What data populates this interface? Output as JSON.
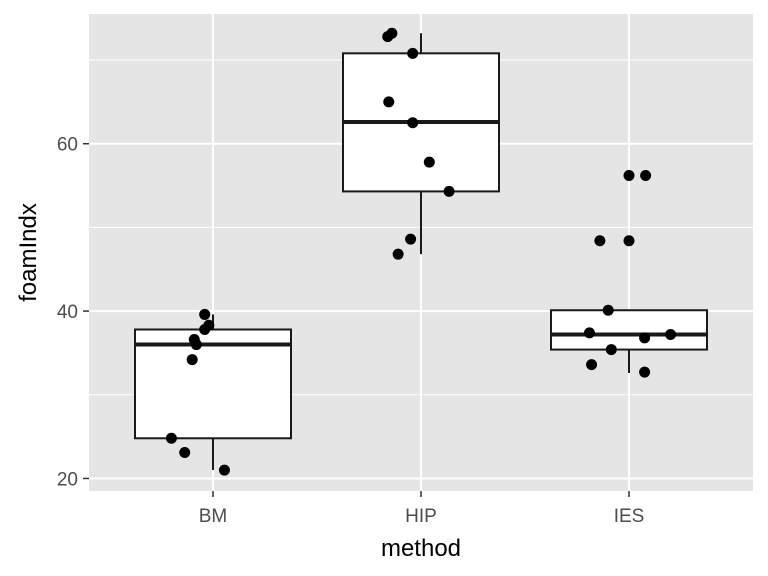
{
  "chart_data": {
    "type": "box",
    "title": "",
    "xlabel": "method",
    "ylabel": "foamIndx",
    "categories": [
      "BM",
      "HIP",
      "IES"
    ],
    "ylim": [
      18.5,
      75.5
    ],
    "yticks": [
      20,
      40,
      60
    ],
    "yticks_minor": [
      30,
      50,
      70
    ],
    "grid": true,
    "legend": "none",
    "boxes": [
      {
        "category": "BM",
        "min": 21.0,
        "q1": 24.8,
        "median": 36.0,
        "q3": 37.8,
        "max": 39.6
      },
      {
        "category": "HIP",
        "min": 46.8,
        "q1": 54.3,
        "median": 62.6,
        "q3": 70.8,
        "max": 73.2
      },
      {
        "category": "IES",
        "min": 32.6,
        "q1": 35.4,
        "median": 37.2,
        "q3": 40.1,
        "max": 40.1
      }
    ],
    "points": [
      {
        "category": "BM",
        "jitter": -0.2,
        "y": 24.8
      },
      {
        "category": "BM",
        "jitter": -0.136,
        "y": 23.1
      },
      {
        "category": "BM",
        "jitter": -0.09,
        "y": 36.6
      },
      {
        "category": "BM",
        "jitter": -0.1,
        "y": 34.2
      },
      {
        "category": "BM",
        "jitter": -0.08,
        "y": 36.0
      },
      {
        "category": "BM",
        "jitter": -0.04,
        "y": 39.6
      },
      {
        "category": "BM",
        "jitter": -0.04,
        "y": 37.8
      },
      {
        "category": "BM",
        "jitter": -0.02,
        "y": 38.3
      },
      {
        "category": "BM",
        "jitter": 0.055,
        "y": 21.0
      },
      {
        "category": "HIP",
        "jitter": -0.16,
        "y": 72.8
      },
      {
        "category": "HIP",
        "jitter": -0.14,
        "y": 73.2
      },
      {
        "category": "HIP",
        "jitter": -0.155,
        "y": 65.0
      },
      {
        "category": "HIP",
        "jitter": -0.11,
        "y": 46.8
      },
      {
        "category": "HIP",
        "jitter": -0.05,
        "y": 48.6
      },
      {
        "category": "HIP",
        "jitter": -0.04,
        "y": 70.8
      },
      {
        "category": "HIP",
        "jitter": -0.04,
        "y": 62.5
      },
      {
        "category": "HIP",
        "jitter": 0.04,
        "y": 57.8
      },
      {
        "category": "HIP",
        "jitter": 0.135,
        "y": 54.3
      },
      {
        "category": "IES",
        "jitter": -0.18,
        "y": 33.6
      },
      {
        "category": "IES",
        "jitter": -0.19,
        "y": 37.4
      },
      {
        "category": "IES",
        "jitter": -0.14,
        "y": 48.4
      },
      {
        "category": "IES",
        "jitter": -0.1,
        "y": 40.1
      },
      {
        "category": "IES",
        "jitter": -0.085,
        "y": 35.4
      },
      {
        "category": "IES",
        "jitter": 0.0,
        "y": 48.4
      },
      {
        "category": "IES",
        "jitter": 0.0,
        "y": 56.2
      },
      {
        "category": "IES",
        "jitter": 0.08,
        "y": 56.2
      },
      {
        "category": "IES",
        "jitter": 0.075,
        "y": 32.7
      },
      {
        "category": "IES",
        "jitter": 0.075,
        "y": 36.8
      },
      {
        "category": "IES",
        "jitter": 0.2,
        "y": 37.2
      }
    ],
    "colors": {
      "panel_background": "#e5e5e5",
      "grid": "#ffffff",
      "box_fill": "#ffffff",
      "box_line": "#1a1a1a",
      "point": "#000000",
      "tick_text": "#4d4d4d"
    }
  }
}
